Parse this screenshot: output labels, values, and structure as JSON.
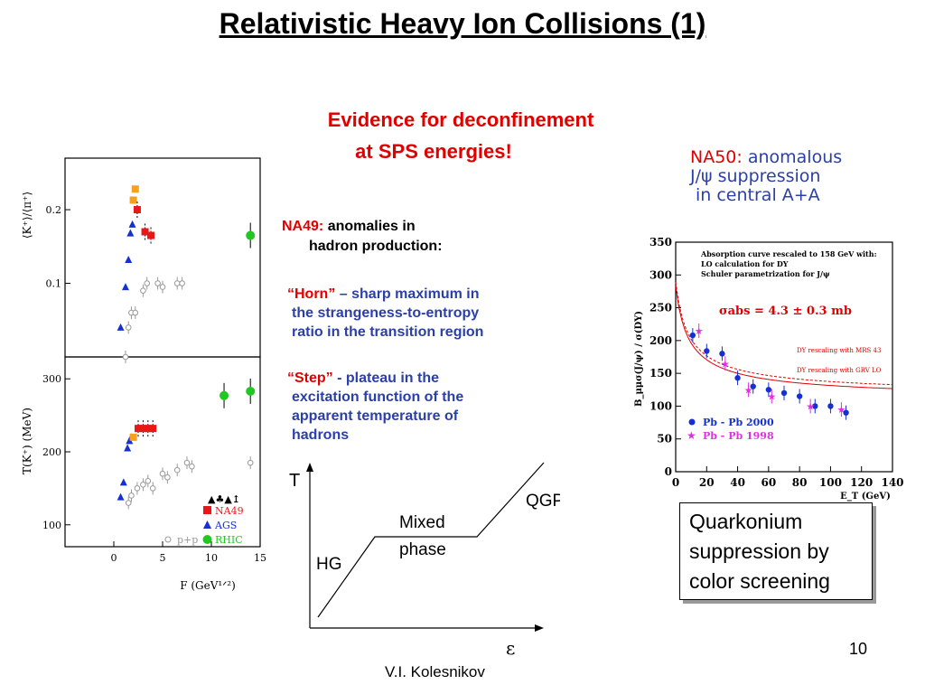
{
  "title": "Relativistic Heavy Ion Collisions (1)",
  "evidence": {
    "line1": "Evidence for deconfinement",
    "line2": "at SPS energies!"
  },
  "na49": {
    "label": "NA49:",
    "line1": "anomalies in",
    "line2": "hadron production:",
    "horn": {
      "term": "“Horn”",
      "l1": " – sharp maximum in",
      "l2": "the strangeness-to-entropy",
      "l3": "ratio in the transition region"
    },
    "step": {
      "term": "“Step”",
      "l1": "  -  plateau in the",
      "l2": "excitation function of the",
      "l3": "apparent temperature of",
      "l4": "hadrons"
    }
  },
  "na50": {
    "label": "NA50:",
    "l1": " anomalous",
    "l2": "J/ψ suppression",
    "l3": "in central A+A"
  },
  "quarkonium": {
    "l1": "Quarkonium",
    "l2": "suppression by",
    "l3": "color screening"
  },
  "page_number": "10",
  "author": "V.I. Kolesnikov",
  "phase_diagram": {
    "y_label": "T",
    "x_label": "ε",
    "hg": "HG",
    "mixed1": "Mixed",
    "mixed2": "phase",
    "qgp": "QGP"
  },
  "colors": {
    "red": "#e00000",
    "blue": "#2b3fa8",
    "na49": "#e81818",
    "ags": "#1530d0",
    "rhic": "#22c822",
    "orange": "#f5a020"
  },
  "chart_data": [
    {
      "type": "scatter",
      "ylabel": "⟨K⁺⟩/⟨π⁺⟩",
      "yticks": [
        "0.1",
        "0.2"
      ],
      "ylim": [
        0.0,
        0.27
      ],
      "xlim": [
        -5,
        15
      ],
      "series": [
        {
          "name": "AGS",
          "marker": "triangle",
          "points": [
            [
              0.7,
              0.04
            ],
            [
              1.2,
              0.095
            ],
            [
              1.5,
              0.132
            ],
            [
              1.7,
              0.168
            ],
            [
              1.9,
              0.18
            ]
          ]
        },
        {
          "name": "NA49",
          "marker": "square",
          "points": [
            [
              2.4,
              0.2
            ],
            [
              3.2,
              0.17
            ],
            [
              3.8,
              0.165
            ]
          ]
        },
        {
          "name": "",
          "marker": "square-orange",
          "points": [
            [
              2.0,
              0.213
            ],
            [
              2.2,
              0.228
            ]
          ]
        },
        {
          "name": "RHIC",
          "marker": "circle",
          "points": [
            [
              14.0,
              0.165
            ]
          ]
        },
        {
          "name": "p+p",
          "marker": "open",
          "points": [
            [
              1.2,
              0.0
            ],
            [
              1.5,
              0.04
            ],
            [
              1.8,
              0.06
            ],
            [
              2.2,
              0.06
            ],
            [
              3.0,
              0.09
            ],
            [
              3.4,
              0.1
            ],
            [
              4.5,
              0.1
            ],
            [
              5.0,
              0.095
            ],
            [
              6.5,
              0.1
            ],
            [
              7.0,
              0.1
            ]
          ]
        }
      ]
    },
    {
      "type": "scatter",
      "ylabel": "T(K⁺) (MeV)",
      "xlabel": "F (GeV¹ᐟ²)",
      "yticks": [
        "100",
        "200",
        "300"
      ],
      "xticks": [
        "0",
        "5",
        "10",
        "15"
      ],
      "ylim": [
        70,
        330
      ],
      "xlim": [
        -5,
        15
      ],
      "legend": [
        "NA49",
        "AGS",
        "RHIC",
        "p+p"
      ],
      "series": [
        {
          "name": "AGS",
          "marker": "triangle",
          "points": [
            [
              0.7,
              138
            ],
            [
              1.0,
              158
            ],
            [
              1.4,
              205
            ],
            [
              1.6,
              215
            ],
            [
              1.8,
              220
            ]
          ]
        },
        {
          "name": "NA49",
          "marker": "square",
          "points": [
            [
              2.5,
              232
            ],
            [
              3.0,
              232
            ],
            [
              3.5,
              232
            ],
            [
              4.0,
              232
            ]
          ]
        },
        {
          "name": "",
          "marker": "square-orange",
          "points": [
            [
              2.0,
              220
            ]
          ]
        },
        {
          "name": "RHIC",
          "marker": "circle",
          "points": [
            [
              11.3,
              277
            ],
            [
              14.0,
              283
            ]
          ]
        },
        {
          "name": "p+p",
          "marker": "open",
          "points": [
            [
              1.5,
              130
            ],
            [
              1.8,
              140
            ],
            [
              2.4,
              150
            ],
            [
              3.0,
              155
            ],
            [
              3.5,
              160
            ],
            [
              4.0,
              150
            ],
            [
              5.0,
              170
            ],
            [
              5.5,
              165
            ],
            [
              6.5,
              175
            ],
            [
              7.5,
              185
            ],
            [
              8.0,
              180
            ],
            [
              14.0,
              185
            ]
          ]
        }
      ]
    },
    {
      "type": "scatter",
      "title_lines": [
        "Absorption curve rescaled to 158 GeV with:",
        "LO calculation for DY",
        "Schuler parametrization for J/ψ"
      ],
      "ylabel": "B_μμσ(J/ψ) / σ(DY)",
      "xlabel": "E_T (GeV)",
      "ylim": [
        0,
        350
      ],
      "xlim": [
        0,
        140
      ],
      "xticks": [
        "0",
        "20",
        "40",
        "60",
        "80",
        "100",
        "120",
        "140"
      ],
      "yticks": [
        "0",
        "50",
        "100",
        "150",
        "200",
        "250",
        "300",
        "350"
      ],
      "sigma_label": "σabs = 4.3 ± 0.3 mb",
      "curve_labels": [
        "DY rescaling with MRS 43",
        "DY rescaling with GRV LO"
      ],
      "series": [
        {
          "name": "Pb - Pb  2000",
          "marker": "circle",
          "color": "#1530d0",
          "points": [
            [
              11,
              208
            ],
            [
              20,
              184
            ],
            [
              30,
              180
            ],
            [
              40,
              143
            ],
            [
              50,
              130
            ],
            [
              60,
              125
            ],
            [
              70,
              120
            ],
            [
              80,
              115
            ],
            [
              90,
              100
            ],
            [
              100,
              100
            ],
            [
              110,
              90
            ]
          ]
        },
        {
          "name": "Pb - Pb  1998",
          "marker": "star",
          "color": "#e030e0",
          "points": [
            [
              15,
              215
            ],
            [
              32,
              165
            ],
            [
              47,
              125
            ],
            [
              62,
              115
            ],
            [
              87,
              100
            ],
            [
              107,
              95
            ]
          ]
        }
      ]
    }
  ]
}
